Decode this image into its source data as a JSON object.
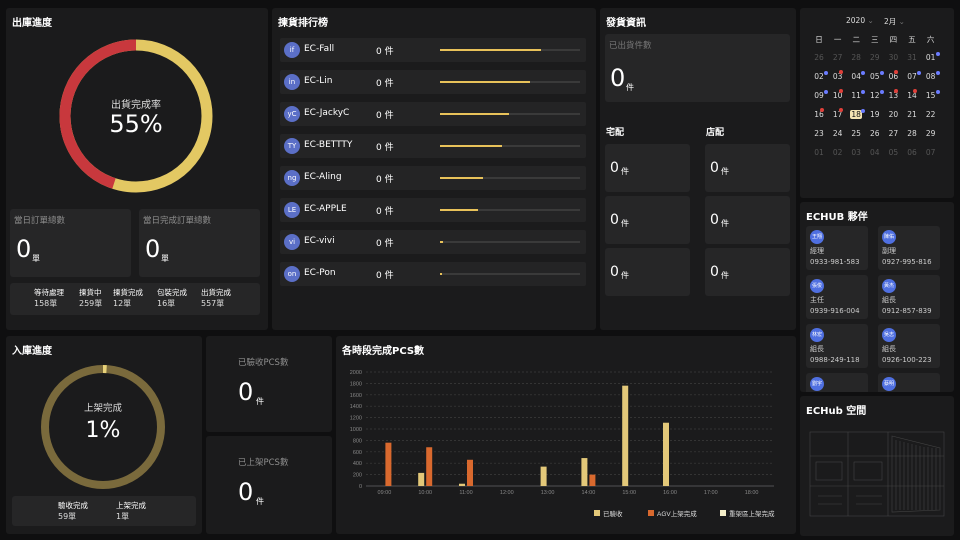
{
  "outbound": {
    "title": "出庫進度",
    "donut_label": "出貨完成率",
    "donut_value": "55%",
    "donut_fraction": 0.55,
    "orders_today_label": "當日訂單總數",
    "orders_today_value": "0",
    "orders_today_unit": "單",
    "completed_today_label": "當日完成訂單總數",
    "completed_today_value": "0",
    "completed_today_unit": "單",
    "stats": [
      {
        "label": "等待處理",
        "value": "158單"
      },
      {
        "label": "揀貨中",
        "value": "259單"
      },
      {
        "label": "揀貨完成",
        "value": "12單"
      },
      {
        "label": "包裝完成",
        "value": "16單"
      },
      {
        "label": "出貨完成",
        "value": "557單"
      }
    ]
  },
  "ranking": {
    "title": "揀貨排行榜",
    "rows": [
      {
        "initials": "if",
        "name": "EC-Fall",
        "count": "0 件",
        "fill": 0.72
      },
      {
        "initials": "in",
        "name": "EC-Lin",
        "count": "0 件",
        "fill": 0.64
      },
      {
        "initials": "yC",
        "name": "EC-JackyC",
        "count": "0 件",
        "fill": 0.49
      },
      {
        "initials": "TY",
        "name": "EC-BETTTY",
        "count": "0 件",
        "fill": 0.44
      },
      {
        "initials": "ng",
        "name": "EC-Aling",
        "count": "0 件",
        "fill": 0.31
      },
      {
        "initials": "LE",
        "name": "EC-APPLE",
        "count": "0 件",
        "fill": 0.27
      },
      {
        "initials": "vi",
        "name": "EC-vivi",
        "count": "0 件",
        "fill": 0.02
      },
      {
        "initials": "on",
        "name": "EC-Pon",
        "count": "0 件",
        "fill": 0.01
      }
    ]
  },
  "shipping": {
    "title": "發貨資訊",
    "shipped_label": "已出貨件數",
    "shipped_value": "0",
    "unit": "件",
    "home_label": "宅配",
    "store_label": "店配",
    "home_values": [
      "0",
      "0",
      "0"
    ],
    "store_values": [
      "0",
      "0",
      "0"
    ]
  },
  "calendar": {
    "year": "2020",
    "month": "2月",
    "weekdays": [
      "日",
      "一",
      "二",
      "三",
      "四",
      "五",
      "六"
    ],
    "weeks": [
      [
        "26",
        "27",
        "28",
        "29",
        "30",
        "31",
        "01"
      ],
      [
        "02",
        "03",
        "04",
        "05",
        "06",
        "07",
        "08"
      ],
      [
        "09",
        "10",
        "11",
        "12",
        "13",
        "14",
        "15"
      ],
      [
        "16",
        "17",
        "18",
        "19",
        "20",
        "21",
        "22"
      ],
      [
        "23",
        "24",
        "25",
        "26",
        "27",
        "28",
        "29"
      ],
      [
        "01",
        "02",
        "03",
        "04",
        "05",
        "06",
        "07"
      ]
    ],
    "today": "18",
    "dot_colors": {
      "blue": "#6b7cff",
      "red": "#e0403a"
    }
  },
  "partners": {
    "title": "ECHUB 夥伴",
    "people": [
      {
        "avatar": "王翔",
        "role": "經理",
        "phone": "0933-981-583"
      },
      {
        "avatar": "陳佑",
        "role": "副理",
        "phone": "0927-995-816"
      },
      {
        "avatar": "張俊",
        "role": "主任",
        "phone": "0939-916-004"
      },
      {
        "avatar": "黃杰",
        "role": "組長",
        "phone": "0912-857-839"
      },
      {
        "avatar": "林宏",
        "role": "組長",
        "phone": "0988-249-118"
      },
      {
        "avatar": "吳志",
        "role": "組長",
        "phone": "0926-100-223"
      },
      {
        "avatar": "劉宇",
        "role": "",
        "phone": ""
      },
      {
        "avatar": "蔡明",
        "role": "",
        "phone": ""
      }
    ]
  },
  "space": {
    "title": "ECHub 空間"
  },
  "inbound": {
    "title": "入庫進度",
    "donut_label": "上架完成",
    "donut_value": "1%",
    "donut_fraction": 0.01,
    "stats": [
      {
        "label": "驗收完成",
        "value": "59單"
      },
      {
        "label": "上架完成",
        "value": "1單"
      }
    ]
  },
  "pcs": {
    "received_label": "已驗收PCS數",
    "received_value": "0",
    "shelved_label": "已上架PCS數",
    "shelved_value": "0",
    "unit": "件"
  },
  "chart_data": {
    "type": "bar",
    "title": "各時段完成PCS數",
    "categories": [
      "09:00",
      "10:00",
      "11:00",
      "12:00",
      "13:00",
      "14:00",
      "15:00",
      "16:00",
      "17:00",
      "18:00"
    ],
    "ylim": [
      0,
      2000
    ],
    "yticks": [
      0,
      200,
      400,
      600,
      800,
      1000,
      1200,
      1400,
      1600,
      1800,
      2000
    ],
    "series": [
      {
        "name": "已驗收",
        "color": "#e3c879",
        "values": [
          0,
          230,
          40,
          0,
          340,
          490,
          1760,
          1110,
          0,
          0
        ]
      },
      {
        "name": "AGV上架完成",
        "color": "#d9692e",
        "values": [
          760,
          680,
          460,
          0,
          0,
          200,
          0,
          0,
          0,
          0
        ]
      },
      {
        "name": "重架區上架完成",
        "color": "#f5efc9",
        "values": [
          0,
          0,
          0,
          0,
          0,
          0,
          0,
          0,
          0,
          0
        ]
      }
    ]
  }
}
